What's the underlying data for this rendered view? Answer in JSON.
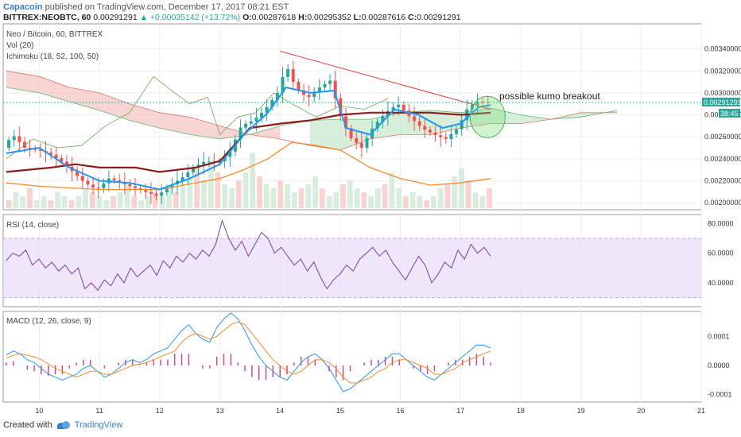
{
  "header": {
    "author": "Capacoin",
    "published": "published on TradingView.com, December 17, 2017 08:21 EST",
    "symbol": "BITTREX:NEOBTC, 60",
    "last": "0.00291291",
    "change": "▲ +0.00035142 (+13.72%)",
    "o_label": "O:",
    "o": "0.00287618",
    "h_label": "H:",
    "h": "0.00295352",
    "l_label": "L:",
    "l": "0.00287616",
    "c_label": "C:",
    "c": "0.00291291"
  },
  "footer": {
    "created_with": "Created with",
    "brand": "TradingView"
  },
  "colors": {
    "up": "#26a69a",
    "down": "#ef5350",
    "conv": "#2196f3",
    "base": "#8d1c1c",
    "lagging": "#6aa84f",
    "kumo_red": "#f4c7c3",
    "kumo_green": "#c9e8cf",
    "bb_orange": "#f08c2a",
    "rsi": "#7b3f9e",
    "rsi_band": "#e8dcf7",
    "macd": "#2196f3",
    "signal": "#f08c2a",
    "hist": "#d04a8a",
    "trendline": "#e53935"
  },
  "chart_data": [
    {
      "type": "candlestick",
      "title": "Neo / Bitcoin, 60, BITTREX",
      "indicators": [
        "Vol (20)",
        "Ichimoku (18, 52, 100, 50)"
      ],
      "x_ticks": [
        "10",
        "11",
        "12",
        "13",
        "14",
        "15",
        "16",
        "17",
        "18",
        "19",
        "20",
        "21"
      ],
      "x_range": [
        9.4,
        21.0
      ],
      "ylim": [
        0.00195,
        0.0036
      ],
      "y_ticks": [
        "0.00340000",
        "0.00320000",
        "0.00300000",
        "0.00280000",
        "0.00260000",
        "0.00240000",
        "0.00220000",
        "0.00200000"
      ],
      "y_tick_values": [
        0.0034,
        0.0032,
        0.003,
        0.0028,
        0.0026,
        0.0024,
        0.0022,
        0.002
      ],
      "last_price_label": "0.00291291",
      "last_price": 0.00291291,
      "countdown_label": "38:45",
      "annotation": "possible kumo breakout",
      "price_path": [
        [
          9.45,
          0.0025
        ],
        [
          9.6,
          0.00262
        ],
        [
          9.8,
          0.0025
        ],
        [
          10.0,
          0.00248
        ],
        [
          10.2,
          0.00245
        ],
        [
          10.4,
          0.00238
        ],
        [
          10.6,
          0.00228
        ],
        [
          10.8,
          0.00218
        ],
        [
          11.0,
          0.00212
        ],
        [
          11.2,
          0.00222
        ],
        [
          11.4,
          0.00218
        ],
        [
          11.6,
          0.00214
        ],
        [
          11.8,
          0.0021
        ],
        [
          12.0,
          0.00206
        ],
        [
          12.2,
          0.00215
        ],
        [
          12.4,
          0.00222
        ],
        [
          12.6,
          0.00232
        ],
        [
          12.8,
          0.00238
        ],
        [
          13.0,
          0.00236
        ],
        [
          13.2,
          0.00245
        ],
        [
          13.4,
          0.0027
        ],
        [
          13.6,
          0.00275
        ],
        [
          13.8,
          0.00285
        ],
        [
          14.0,
          0.003
        ],
        [
          14.15,
          0.00325
        ],
        [
          14.3,
          0.00305
        ],
        [
          14.5,
          0.00295
        ],
        [
          14.7,
          0.00305
        ],
        [
          14.9,
          0.00312
        ],
        [
          15.0,
          0.00285
        ],
        [
          15.2,
          0.0026
        ],
        [
          15.4,
          0.0025
        ],
        [
          15.6,
          0.0027
        ],
        [
          15.8,
          0.00282
        ],
        [
          16.0,
          0.0029
        ],
        [
          16.2,
          0.00278
        ],
        [
          16.4,
          0.00268
        ],
        [
          16.6,
          0.00262
        ],
        [
          16.8,
          0.00258
        ],
        [
          17.0,
          0.00268
        ],
        [
          17.15,
          0.00285
        ],
        [
          17.3,
          0.00292
        ],
        [
          17.5,
          0.00291
        ]
      ],
      "conversion_line": [
        [
          9.45,
          0.00245
        ],
        [
          10.0,
          0.0025
        ],
        [
          10.5,
          0.00232
        ],
        [
          11.0,
          0.0022
        ],
        [
          11.5,
          0.00218
        ],
        [
          12.0,
          0.00212
        ],
        [
          12.5,
          0.00222
        ],
        [
          13.0,
          0.00235
        ],
        [
          13.4,
          0.00262
        ],
        [
          13.8,
          0.00282
        ],
        [
          14.1,
          0.00305
        ],
        [
          14.5,
          0.003
        ],
        [
          14.9,
          0.00302
        ],
        [
          15.1,
          0.00268
        ],
        [
          15.5,
          0.00262
        ],
        [
          15.9,
          0.00285
        ],
        [
          16.3,
          0.0028
        ],
        [
          16.7,
          0.00268
        ],
        [
          17.0,
          0.00272
        ],
        [
          17.3,
          0.00287
        ],
        [
          17.5,
          0.00289
        ]
      ],
      "base_line": [
        [
          9.45,
          0.00228
        ],
        [
          10.2,
          0.00232
        ],
        [
          10.6,
          0.00235
        ],
        [
          11.0,
          0.00232
        ],
        [
          11.6,
          0.00232
        ],
        [
          12.0,
          0.00228
        ],
        [
          12.6,
          0.00232
        ],
        [
          13.0,
          0.00238
        ],
        [
          13.5,
          0.00268
        ],
        [
          14.0,
          0.00272
        ],
        [
          14.5,
          0.00275
        ],
        [
          15.0,
          0.0028
        ],
        [
          15.5,
          0.00282
        ],
        [
          16.0,
          0.00282
        ],
        [
          16.5,
          0.00282
        ],
        [
          17.0,
          0.0028
        ],
        [
          17.5,
          0.00282
        ]
      ],
      "lagging_span": [
        [
          9.45,
          0.0024
        ],
        [
          9.9,
          0.00258
        ],
        [
          10.3,
          0.0025
        ],
        [
          10.7,
          0.00252
        ],
        [
          11.1,
          0.0027
        ],
        [
          11.5,
          0.00282
        ],
        [
          11.9,
          0.00315
        ],
        [
          12.2,
          0.00302
        ],
        [
          12.5,
          0.0029
        ],
        [
          12.8,
          0.00296
        ],
        [
          13.0,
          0.00262
        ],
        [
          13.3,
          0.00278
        ],
        [
          13.6,
          0.00282
        ],
        [
          13.9,
          0.003
        ],
        [
          14.2,
          0.0029
        ],
        [
          14.6,
          0.00278
        ],
        [
          15.0,
          0.00288
        ],
        [
          15.4,
          0.00285
        ],
        [
          15.8,
          0.00295
        ]
      ],
      "kumo_span_a": [
        [
          9.45,
          0.00305
        ],
        [
          10.0,
          0.003
        ],
        [
          10.5,
          0.00292
        ],
        [
          11.0,
          0.00284
        ],
        [
          11.5,
          0.00275
        ],
        [
          12.0,
          0.00268
        ],
        [
          12.5,
          0.00262
        ],
        [
          13.0,
          0.00258
        ],
        [
          13.5,
          0.00262
        ],
        [
          14.0,
          0.0027
        ],
        [
          14.5,
          0.00275
        ],
        [
          15.0,
          0.00276
        ],
        [
          15.5,
          0.00276
        ],
        [
          16.0,
          0.00282
        ],
        [
          16.5,
          0.00284
        ],
        [
          17.0,
          0.00282
        ],
        [
          17.5,
          0.00286
        ],
        [
          18.0,
          0.0028
        ],
        [
          18.5,
          0.00276
        ],
        [
          19.0,
          0.00278
        ],
        [
          19.6,
          0.00284
        ]
      ],
      "kumo_span_b": [
        [
          9.45,
          0.0032
        ],
        [
          10.0,
          0.00315
        ],
        [
          10.5,
          0.00305
        ],
        [
          11.0,
          0.003
        ],
        [
          11.5,
          0.0029
        ],
        [
          12.0,
          0.00282
        ],
        [
          12.5,
          0.00278
        ],
        [
          13.0,
          0.0027
        ],
        [
          13.5,
          0.00262
        ],
        [
          14.0,
          0.00258
        ],
        [
          14.5,
          0.00252
        ],
        [
          15.0,
          0.00248
        ],
        [
          15.5,
          0.00258
        ],
        [
          16.0,
          0.00262
        ],
        [
          16.5,
          0.00262
        ],
        [
          17.0,
          0.00268
        ],
        [
          17.5,
          0.00272
        ],
        [
          18.0,
          0.00272
        ],
        [
          18.5,
          0.00276
        ],
        [
          19.0,
          0.00282
        ],
        [
          19.6,
          0.00282
        ]
      ],
      "lower_band": [
        [
          9.45,
          0.00218
        ],
        [
          10.0,
          0.00215
        ],
        [
          11.0,
          0.00212
        ],
        [
          12.0,
          0.00212
        ],
        [
          13.0,
          0.00222
        ],
        [
          13.4,
          0.0023
        ],
        [
          13.8,
          0.0024
        ],
        [
          14.2,
          0.00255
        ],
        [
          14.6,
          0.00252
        ],
        [
          15.0,
          0.00248
        ],
        [
          15.5,
          0.00232
        ],
        [
          16.0,
          0.00222
        ],
        [
          16.5,
          0.00216
        ],
        [
          17.0,
          0.00218
        ],
        [
          17.5,
          0.00222
        ]
      ],
      "trendline": [
        [
          14.0,
          0.00338
        ],
        [
          17.5,
          0.00285
        ]
      ],
      "breakout_circle_center": [
        17.45,
        0.00278
      ],
      "volume": [
        2,
        4,
        3,
        5,
        2,
        3,
        2,
        4,
        3,
        2,
        3,
        5,
        4,
        3,
        2,
        3,
        4,
        6,
        3,
        2,
        3,
        4,
        3,
        5,
        4,
        6,
        8,
        10,
        7,
        12,
        9,
        6,
        5,
        7,
        9,
        14,
        8,
        6,
        5,
        7,
        6,
        4,
        5,
        6,
        8,
        5,
        3,
        4,
        6,
        7,
        5,
        4,
        3,
        5,
        6,
        9,
        5,
        3,
        4,
        3,
        2,
        3,
        5,
        6,
        8,
        10,
        7,
        4,
        3,
        5
      ],
      "volume_max": 14
    },
    {
      "type": "line",
      "title": "RSI (14, close)",
      "ylim": [
        25,
        85
      ],
      "y_ticks": [
        "80.0000",
        "60.0000",
        "40.0000"
      ],
      "y_tick_values": [
        80,
        60,
        40
      ],
      "band": [
        30,
        70
      ],
      "values": [
        55,
        60,
        58,
        62,
        52,
        56,
        50,
        54,
        48,
        52,
        46,
        50,
        36,
        40,
        35,
        42,
        38,
        46,
        40,
        50,
        44,
        48,
        52,
        45,
        55,
        50,
        58,
        54,
        60,
        56,
        62,
        58,
        66,
        82,
        70,
        62,
        68,
        58,
        66,
        74,
        70,
        60,
        64,
        58,
        52,
        56,
        48,
        54,
        44,
        36,
        42,
        46,
        52,
        48,
        56,
        60,
        64,
        58,
        62,
        54,
        48,
        42,
        50,
        58,
        52,
        40,
        46,
        54,
        50,
        62,
        56,
        66,
        60,
        64,
        58
      ]
    },
    {
      "type": "line",
      "title": "MACD (12, 26, close, 9)",
      "ylim": [
        -0.00012,
        0.00018
      ],
      "y_ticks": [
        "0.0001",
        "0.0000",
        "-0.0001"
      ],
      "y_tick_values": [
        0.0001,
        0.0,
        -0.0001
      ],
      "macd": [
        3.5e-05,
        5e-05,
        4e-05,
        2e-05,
        1e-05,
        -1e-05,
        -3e-05,
        -4e-05,
        -5e-05,
        -4e-05,
        -3e-05,
        -1e-05,
        0.0,
        -2e-05,
        -4e-05,
        -3e-05,
        -1e-05,
        1e-05,
        2e-05,
        1e-05,
        2e-05,
        4e-05,
        5e-05,
        6e-05,
        9e-05,
        0.00012,
        0.00014,
        0.00011,
        9e-05,
        8e-05,
        0.00013,
        0.00016,
        0.00018,
        0.00016,
        0.00012,
        7e-05,
        3e-05,
        0.0,
        -2e-05,
        -4e-05,
        -5e-05,
        -2e-05,
        1e-05,
        3e-05,
        4e-05,
        2e-05,
        -1e-05,
        -5e-05,
        -9e-05,
        -8e-05,
        -6e-05,
        -4e-05,
        -2e-05,
        0.0,
        2e-05,
        4e-05,
        4e-05,
        2e-05,
        0.0,
        -2e-05,
        -4e-05,
        -5e-05,
        -3e-05,
        -1e-05,
        1e-05,
        3e-05,
        5e-05,
        7e-05,
        7e-05,
        6e-05
      ],
      "signal": [
        2.5e-05,
        3.5e-05,
        4e-05,
        3.5e-05,
        3e-05,
        2e-05,
        5e-06,
        -1e-05,
        -2e-05,
        -3e-05,
        -4e-05,
        -3e-05,
        -2e-05,
        -2e-05,
        -3e-05,
        -3e-05,
        -2e-05,
        -1e-05,
        0.0,
        5e-06,
        1e-05,
        2e-05,
        3e-05,
        4e-05,
        5e-05,
        8e-05,
        0.0001,
        0.00011,
        0.0001,
        9e-05,
        0.0001,
        0.00012,
        0.00014,
        0.00015,
        0.00014,
        0.00011,
        8e-05,
        5e-05,
        2e-05,
        0.0,
        -2e-05,
        -3e-05,
        -2e-05,
        0.0,
        2e-05,
        2e-05,
        1e-05,
        -1e-05,
        -4e-05,
        -6e-05,
        -6e-05,
        -5e-05,
        -4e-05,
        -2e-05,
        -1e-05,
        1e-05,
        2e-05,
        2e-05,
        1e-05,
        0.0,
        -1e-05,
        -3e-05,
        -3e-05,
        -2e-05,
        -1e-05,
        1e-05,
        2e-05,
        3e-05,
        4e-05,
        5e-05
      ]
    }
  ]
}
